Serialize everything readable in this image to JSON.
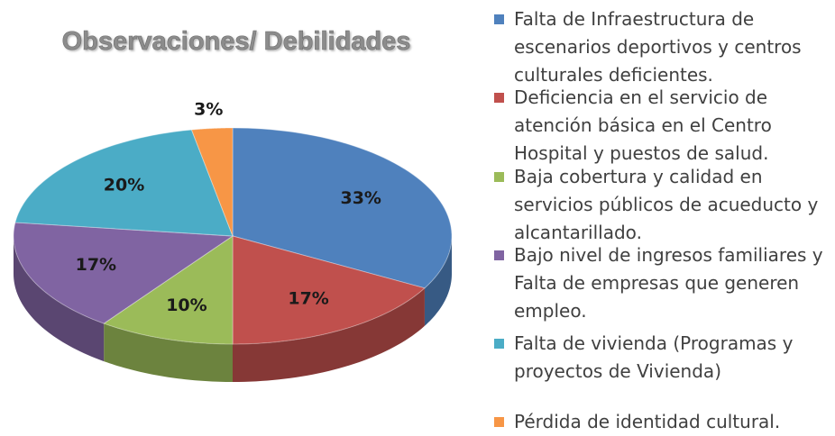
{
  "chart_data": {
    "type": "pie",
    "title": "Observaciones/ Debilidades",
    "series": [
      {
        "name": "Falta de Infraestructura de escenarios deportivos y centros culturales deficientes.",
        "color": "#4f81bd"
      },
      {
        "name": "Deficiencia en el servicio de atención básica en el Centro Hospital y puestos de salud.",
        "color": "#c0504d"
      },
      {
        "name": "Baja cobertura y calidad en servicios públicos de acueducto y alcantarillado.",
        "color": "#9bbb59"
      },
      {
        "name": "Bajo nivel de ingresos familiares y Falta de empresas que generen empleo.",
        "color": "#8064a2"
      },
      {
        "name": "Falta de vivienda (Programas y proyectos  de Vivienda)",
        "color": "#4bacc6"
      },
      {
        "name": "Pérdida de identidad cultural.",
        "color": "#f79646"
      }
    ],
    "values": [
      33,
      17,
      10,
      17,
      20,
      3
    ],
    "value_labels": [
      "33%",
      "17%",
      "10%",
      "17%",
      "20%",
      "3%"
    ],
    "legend": "right"
  }
}
